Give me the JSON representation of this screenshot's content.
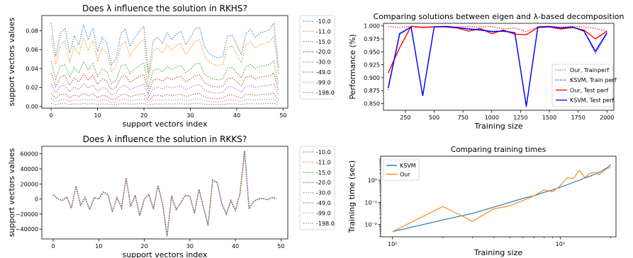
{
  "figure": {
    "colors": {
      "blue": "#1f77b4",
      "orange": "#ff7f0e",
      "green": "#2ca02c",
      "red": "#d62728",
      "purple": "#9467bd",
      "brown": "#8c564b",
      "pink": "#e377c2",
      "gray": "#7f7f7f",
      "pure_red": "#ff0000",
      "pure_blue": "#0000ff"
    }
  },
  "chart_data": [
    {
      "id": "rkhs",
      "type": "line",
      "title": "Does λ influence the solution in RKHS?",
      "xlabel": "support vectors index",
      "ylabel": "support vectors values",
      "xlim": [
        -2,
        51
      ],
      "ylim": [
        -0.002,
        0.096
      ],
      "xticks": [
        0,
        10,
        20,
        30,
        40,
        50
      ],
      "yticks": [
        0.0,
        0.02,
        0.04,
        0.06,
        0.08
      ],
      "ytick_labels": [
        "0.00",
        "0.02",
        "0.04",
        "0.06",
        "0.08"
      ],
      "legend_position": "outside-right",
      "base_profile": [
        1.0,
        0.6,
        0.88,
        0.93,
        0.64,
        0.85,
        0.74,
        0.98,
        0.8,
        0.94,
        0.66,
        0.83,
        0.76,
        0.5,
        0.57,
        0.87,
        0.93,
        0.72,
        0.82,
        0.9,
        0.96,
        0.4,
        0.79,
        0.83,
        0.76,
        0.88,
        0.8,
        0.87,
        0.9,
        0.74,
        0.82,
        0.93,
        0.95,
        0.72,
        0.64,
        0.6,
        0.58,
        0.6,
        0.84,
        0.86,
        0.74,
        0.62,
        0.88,
        0.92,
        0.83,
        0.88,
        0.9,
        0.92,
        1.0,
        0.47
      ],
      "series": [
        {
          "name": "-10.0",
          "scale": 0.088,
          "color": "#1f77b4"
        },
        {
          "name": "-11.0",
          "scale": 0.074,
          "color": "#ff7f0e"
        },
        {
          "name": "-15.0",
          "scale": 0.048,
          "color": "#2ca02c"
        },
        {
          "name": "-20.0",
          "scale": 0.035,
          "color": "#d62728"
        },
        {
          "name": "-30.0",
          "scale": 0.024,
          "color": "#9467bd"
        },
        {
          "name": "-49.0",
          "scale": 0.014,
          "color": "#8c564b"
        },
        {
          "name": "-99.0",
          "scale": 0.008,
          "color": "#e377c2"
        },
        {
          "name": "-198.0",
          "scale": 0.003,
          "color": "#7f7f7f"
        }
      ]
    },
    {
      "id": "eigen",
      "type": "line",
      "title": "Comparing solutions between eigen and λ-based decomposition",
      "xlabel": "Training size",
      "ylabel": "Performance (%)",
      "xlim": [
        60,
        2060
      ],
      "ylim": [
        0.837,
        1.005
      ],
      "xticks": [
        250,
        500,
        750,
        1000,
        1250,
        1500,
        1750,
        2000
      ],
      "yticks": [
        0.85,
        0.875,
        0.9,
        0.925,
        0.95,
        0.975,
        1.0
      ],
      "ytick_labels": [
        "0.850",
        "0.875",
        "0.900",
        "0.925",
        "0.950",
        "0.975",
        "1.000"
      ],
      "legend_position": "lower-right",
      "series": [
        {
          "name": "Our, Trainperf",
          "style": "dotted",
          "color": "#ff0000",
          "x": [
            100,
            200,
            300,
            400,
            500,
            600,
            700,
            800,
            900,
            1000,
            1100,
            1200,
            1300,
            1400,
            1500,
            1600,
            1700,
            1800,
            1900,
            2000
          ],
          "y": [
            0.999,
            0.997,
            0.999,
            0.998,
            0.999,
            0.999,
            0.998,
            0.999,
            0.998,
            0.999,
            0.994,
            0.996,
            0.989,
            0.998,
            0.999,
            0.998,
            0.999,
            0.998,
            0.995,
            0.99
          ]
        },
        {
          "name": "KSVM, Train perf",
          "style": "dotted",
          "color": "#0000ff",
          "x": [
            100,
            200,
            300,
            400,
            500,
            600,
            700,
            800,
            900,
            1000,
            1100,
            1200,
            1300,
            1400,
            1500,
            1600,
            1700,
            1800,
            1900,
            2000
          ],
          "y": [
            0.876,
            0.983,
            0.999,
            0.864,
            0.998,
            0.999,
            0.997,
            0.995,
            0.993,
            0.99,
            0.99,
            0.985,
            0.843,
            0.998,
            0.999,
            0.995,
            0.998,
            0.99,
            0.947,
            0.985
          ]
        },
        {
          "name": "Our, Test perf",
          "style": "solid",
          "color": "#ff0000",
          "x": [
            100,
            200,
            300,
            400,
            500,
            600,
            700,
            800,
            900,
            1000,
            1100,
            1200,
            1300,
            1400,
            1500,
            1600,
            1700,
            1800,
            1900,
            2000
          ],
          "y": [
            0.909,
            0.958,
            0.999,
            0.997,
            0.998,
            0.998,
            0.996,
            0.99,
            0.995,
            0.985,
            0.992,
            0.984,
            0.983,
            0.997,
            0.998,
            0.994,
            0.997,
            0.992,
            0.975,
            0.99
          ]
        },
        {
          "name": "KSVM, Test perf",
          "style": "solid",
          "color": "#0000ff",
          "x": [
            100,
            200,
            300,
            400,
            500,
            600,
            700,
            800,
            900,
            1000,
            1100,
            1200,
            1300,
            1400,
            1500,
            1600,
            1700,
            1800,
            1900,
            2000
          ],
          "y": [
            0.88,
            0.985,
            0.998,
            0.865,
            0.998,
            0.999,
            0.997,
            0.994,
            0.992,
            0.989,
            0.99,
            0.987,
            0.845,
            0.998,
            0.999,
            0.996,
            0.998,
            0.99,
            0.951,
            0.987
          ]
        }
      ]
    },
    {
      "id": "rkks",
      "type": "line",
      "title": "Does λ influence the solution in RKKS?",
      "xlabel": "support vectors index",
      "ylabel": "support vectors values",
      "xlim": [
        -2.5,
        51.5
      ],
      "ylim": [
        -53000,
        70000
      ],
      "xticks": [
        0,
        10,
        20,
        30,
        40,
        50
      ],
      "yticks": [
        -40000,
        -20000,
        0,
        20000,
        40000,
        60000
      ],
      "ytick_labels": [
        "−40000",
        "−20000",
        "0",
        "20000",
        "40000",
        "60000"
      ],
      "legend_position": "outside-right",
      "values": [
        6000,
        0,
        -2000,
        3000,
        -12000,
        17000,
        -8000,
        2000,
        -14000,
        2000,
        0,
        9000,
        6000,
        -17000,
        2000,
        -12000,
        28000,
        -10000,
        5000,
        -22000,
        0,
        6000,
        -13000,
        18000,
        -6000,
        -49000,
        4000,
        -14000,
        -5000,
        5000,
        4000,
        -19000,
        13000,
        -11000,
        -35000,
        25000,
        22000,
        -6000,
        -20000,
        -2000,
        -15000,
        7000,
        64000,
        -13000,
        -3000,
        0,
        1000,
        -1000,
        2000,
        1000
      ],
      "series": [
        {
          "name": "-10.0",
          "color": "#1f77b4"
        },
        {
          "name": "-11.0",
          "color": "#ff7f0e"
        },
        {
          "name": "-15.0",
          "color": "#2ca02c"
        },
        {
          "name": "-20.0",
          "color": "#d62728"
        },
        {
          "name": "-30.0",
          "color": "#9467bd"
        },
        {
          "name": "-49.0",
          "color": "#8c564b"
        },
        {
          "name": "-99.0",
          "color": "#e377c2"
        },
        {
          "name": "-198.0",
          "color": "#7f7f7f"
        }
      ]
    },
    {
      "id": "times",
      "type": "line",
      "title": "Comparing training times",
      "xlabel": "Training size",
      "ylabel": "Training time (sec)",
      "xscale": "log",
      "yscale": "log",
      "xlim": [
        85,
        2150
      ],
      "ylim": [
        0.0028,
        12
      ],
      "xticks": [
        100,
        1000
      ],
      "xtick_labels": [
        "10²",
        "10³"
      ],
      "yticks": [
        0.01,
        0.1,
        1
      ],
      "ytick_labels": [
        "10⁻²",
        "10⁻¹",
        "10⁰"
      ],
      "legend_position": "upper-left",
      "series": [
        {
          "name": "KSVM",
          "color": "#1f77b4",
          "x": [
            100,
            200,
            300,
            400,
            500,
            600,
            700,
            800,
            900,
            1000,
            1100,
            1200,
            1300,
            1400,
            1500,
            1600,
            1700,
            1800,
            1900,
            2000
          ],
          "y": [
            0.0048,
            0.016,
            0.032,
            0.06,
            0.1,
            0.15,
            0.2,
            0.28,
            0.36,
            0.48,
            0.62,
            0.8,
            1.0,
            1.25,
            1.5,
            1.8,
            2.2,
            2.8,
            3.6,
            5.0
          ]
        },
        {
          "name": "Our",
          "color": "#ff7f0e",
          "x": [
            100,
            200,
            300,
            400,
            500,
            600,
            700,
            800,
            900,
            1000,
            1100,
            1200,
            1300,
            1400,
            1500,
            1600,
            1700,
            1800,
            1900,
            2000
          ],
          "y": [
            0.0048,
            0.065,
            0.014,
            0.05,
            0.07,
            0.12,
            0.2,
            0.36,
            0.3,
            0.55,
            1.3,
            1.2,
            2.8,
            1.3,
            2.0,
            2.2,
            1.8,
            2.4,
            3.4,
            3.8
          ]
        }
      ]
    }
  ]
}
